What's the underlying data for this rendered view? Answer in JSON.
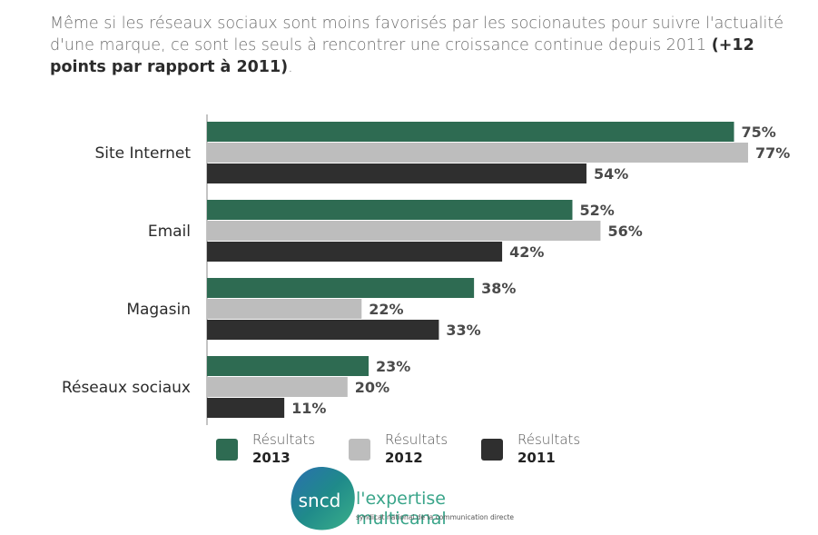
{
  "intro": {
    "text_plain": "Même si les réseaux sociaux sont moins favorisés par les socionautes pour suivre l'actualité d'une marque, ce sont les seuls à rencontrer une croissance continue depuis 2011 ",
    "text_bold": "(+12 points par rapport à 2011)",
    "text_end": "."
  },
  "chart_data": {
    "type": "bar",
    "orientation": "horizontal",
    "categories": [
      "Site Internet",
      "Email",
      "Magasin",
      "Réseaux sociaux"
    ],
    "series": [
      {
        "name": "Résultats 2013",
        "color": "#2e6b52",
        "values": [
          75,
          52,
          38,
          23
        ]
      },
      {
        "name": "Résultats 2012",
        "color": "#bdbdbd",
        "values": [
          77,
          56,
          22,
          20
        ]
      },
      {
        "name": "Résultats 2011",
        "color": "#2f2f2f",
        "values": [
          54,
          42,
          33,
          11
        ]
      }
    ],
    "value_suffix": "%",
    "xlim": [
      0,
      100
    ],
    "grid": false,
    "legend": "bottom"
  },
  "legend": [
    {
      "line1": "Résultats",
      "line2": "2013",
      "color": "#2e6b52"
    },
    {
      "line1": "Résultats",
      "line2": "2012",
      "color": "#bdbdbd"
    },
    {
      "line1": "Résultats",
      "line2": "2011",
      "color": "#2f2f2f"
    }
  ],
  "brand": {
    "logo_text": "sncd",
    "tagline": "l'expertise multicanal",
    "subtitle": "syndicat national de la communication directe"
  }
}
